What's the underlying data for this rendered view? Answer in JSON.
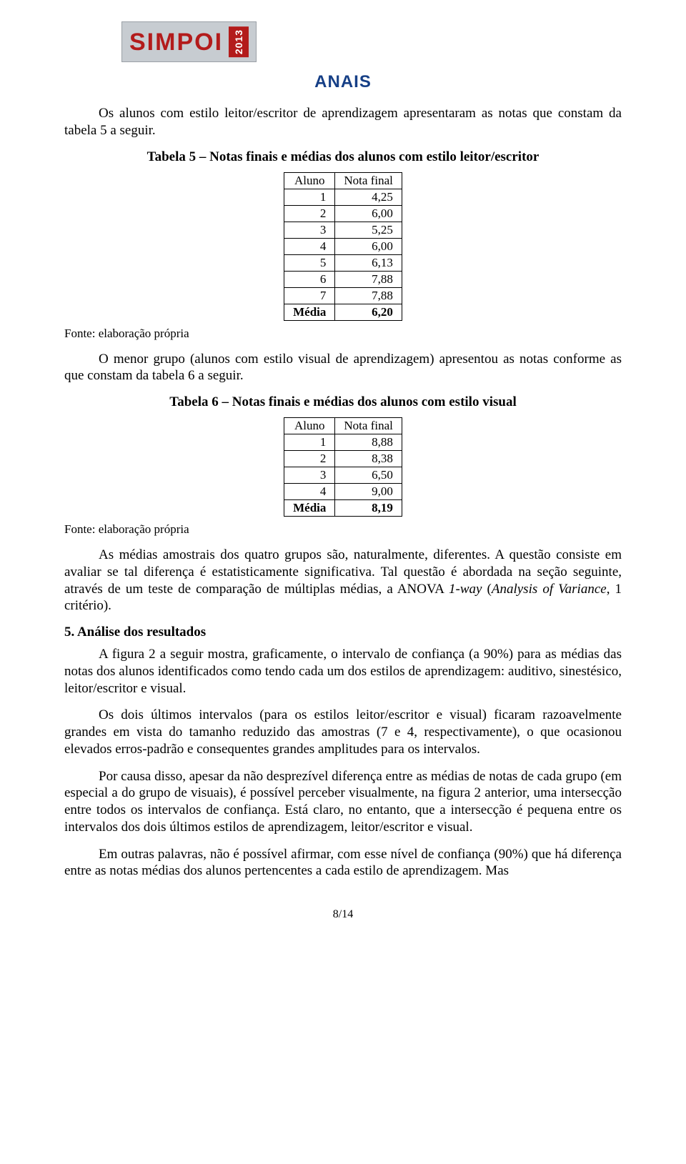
{
  "logo": {
    "brand": "SIMPOI",
    "year": "2013"
  },
  "header": "ANAIS",
  "p1": "Os alunos com estilo leitor/escritor de aprendizagem apresentaram as notas que constam da tabela 5 a seguir.",
  "table5": {
    "type": "table",
    "title": "Tabela 5 – Notas finais e médias dos alunos com estilo leitor/escritor",
    "col1": "Aluno",
    "col2": "Nota final",
    "rows": [
      {
        "a": "1",
        "v": "4,25"
      },
      {
        "a": "2",
        "v": "6,00"
      },
      {
        "a": "3",
        "v": "5,25"
      },
      {
        "a": "4",
        "v": "6,00"
      },
      {
        "a": "5",
        "v": "6,13"
      },
      {
        "a": "6",
        "v": "7,88"
      },
      {
        "a": "7",
        "v": "7,88"
      }
    ],
    "media_label": "Média",
    "media_value": "6,20",
    "source": "Fonte: elaboração própria"
  },
  "p2": "O menor grupo (alunos com estilo visual de aprendizagem) apresentou as notas conforme as que constam da tabela 6 a seguir.",
  "table6": {
    "type": "table",
    "title": "Tabela 6 – Notas finais e médias dos alunos com estilo visual",
    "col1": "Aluno",
    "col2": "Nota final",
    "rows": [
      {
        "a": "1",
        "v": "8,88"
      },
      {
        "a": "2",
        "v": "8,38"
      },
      {
        "a": "3",
        "v": "6,50"
      },
      {
        "a": "4",
        "v": "9,00"
      }
    ],
    "media_label": "Média",
    "media_value": "8,19",
    "source": "Fonte: elaboração própria"
  },
  "p3a": "As médias amostrais dos quatro grupos são, naturalmente, diferentes. A questão consiste em avaliar se tal diferença é estatisticamente significativa. Tal questão é abordada na seção seguinte, através de um teste de comparação de múltiplas médias, a ANOVA ",
  "p3b": "1-way",
  "p3c": " (",
  "p3d": "Analysis of Variance",
  "p3e": ", 1 critério).",
  "section5": "5. Análise dos resultados",
  "p4": "A figura 2 a seguir mostra, graficamente, o intervalo de confiança (a 90%) para as médias das notas dos alunos identificados como tendo cada um dos estilos de aprendizagem: auditivo, sinestésico, leitor/escritor e visual.",
  "p5": "Os dois últimos intervalos (para os estilos leitor/escritor e visual) ficaram razoavelmente grandes em vista do tamanho reduzido das amostras (7 e 4, respectivamente), o que ocasionou elevados erros-padrão e consequentes grandes amplitudes para os intervalos.",
  "p6": "Por causa disso, apesar da não desprezível diferença entre as médias de notas de cada grupo (em especial a do grupo de visuais), é possível perceber visualmente, na figura 2 anterior, uma intersecção entre todos os intervalos de confiança. Está claro, no entanto, que a intersecção é pequena entre os intervalos dos dois últimos estilos de aprendizagem, leitor/escritor e visual.",
  "p7": "Em outras palavras, não é possível afirmar, com esse nível de confiança (90%) que há diferença entre as notas médias dos alunos pertencentes a cada estilo de aprendizagem. Mas",
  "pagenum": "8/14",
  "colors": {
    "heading": "#163f86",
    "logo_bg": "#c7ccd1",
    "logo_text": "#b31b1b",
    "logo_year_bg": "#b31b1b",
    "text": "#000000",
    "page_bg": "#ffffff"
  }
}
